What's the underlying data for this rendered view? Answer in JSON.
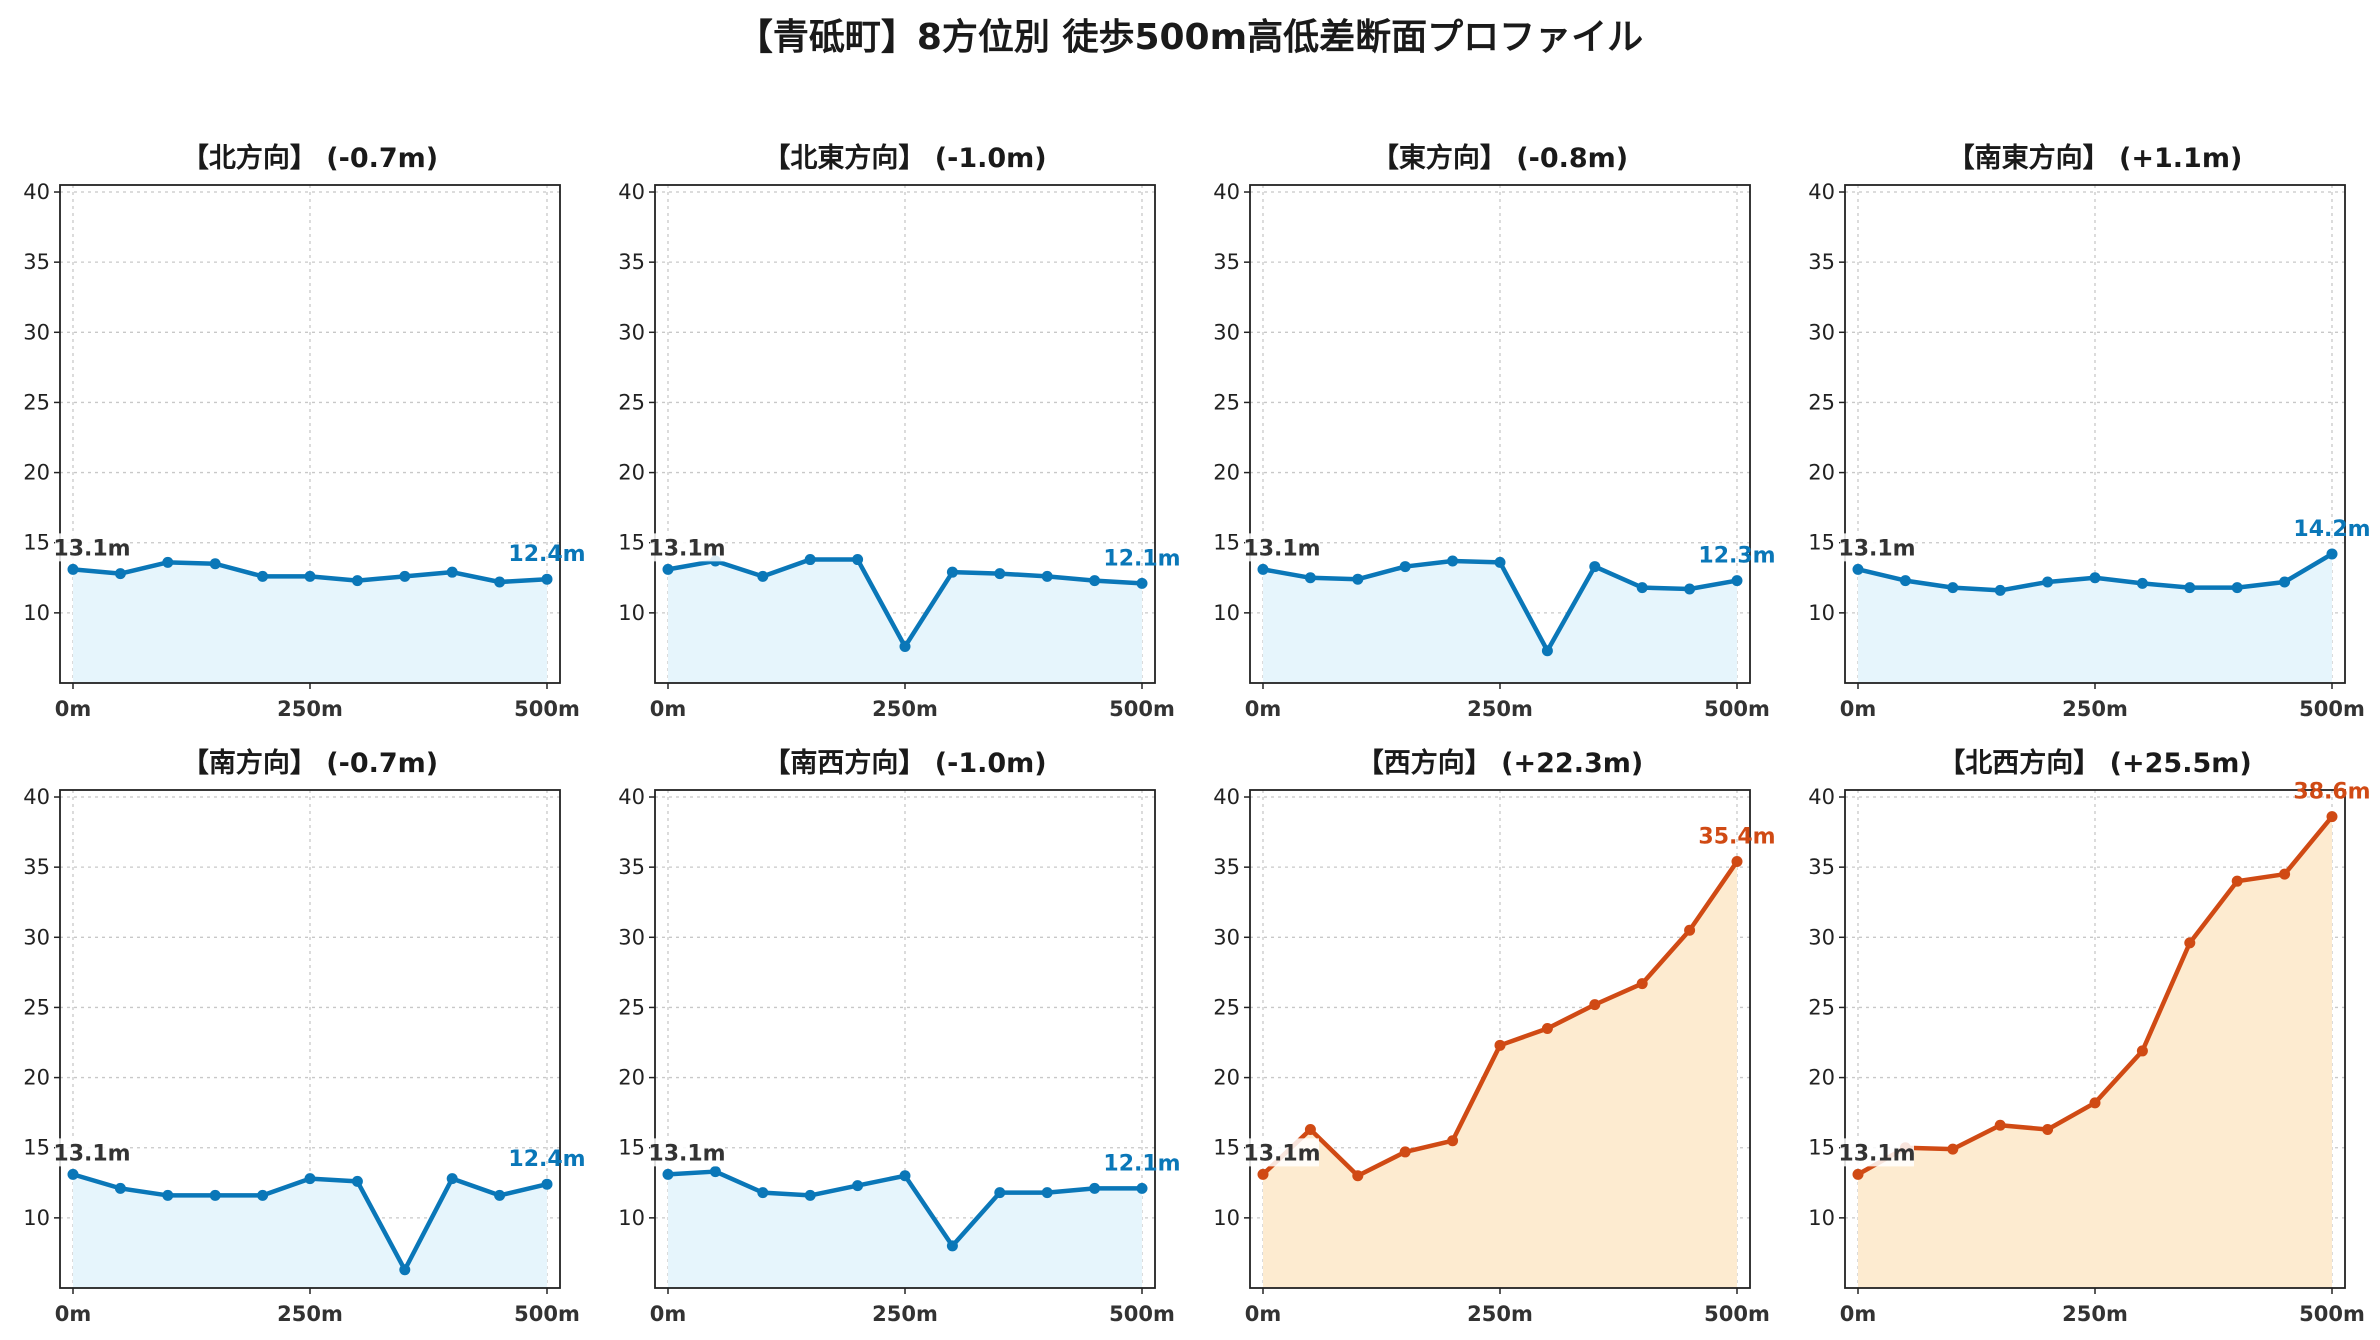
{
  "title": "【青砥町】8方位別 徒歩500m高低差断面プロファイル",
  "colors": {
    "flat_line": "#0a77b8",
    "flat_fill": "#e6f5fc",
    "up_line": "#d04a14",
    "up_fill": "#fdebd0",
    "start_label": "#333333"
  },
  "chart_data": [
    {
      "type": "area",
      "title": "【北方向】 (-0.7m)",
      "trend": "flat",
      "x": [
        0,
        50,
        100,
        150,
        200,
        250,
        300,
        350,
        400,
        450,
        500
      ],
      "values": [
        13.1,
        12.8,
        13.6,
        13.5,
        12.6,
        12.6,
        12.3,
        12.6,
        12.9,
        12.2,
        12.4
      ],
      "start_label": "13.1m",
      "end_label": "12.4m",
      "xticks": [
        "0m",
        "250m",
        "500m"
      ],
      "yticks": [
        10,
        15,
        20,
        25,
        30,
        35,
        40
      ],
      "ylim": [
        5,
        40.5
      ],
      "xlim": [
        0,
        500
      ],
      "grid": true
    },
    {
      "type": "area",
      "title": "【北東方向】 (-1.0m)",
      "trend": "flat",
      "x": [
        0,
        50,
        100,
        150,
        200,
        250,
        300,
        350,
        400,
        450,
        500
      ],
      "values": [
        13.1,
        13.7,
        12.6,
        13.8,
        13.8,
        7.6,
        12.9,
        12.8,
        12.6,
        12.3,
        12.1
      ],
      "start_label": "13.1m",
      "end_label": "12.1m",
      "xticks": [
        "0m",
        "250m",
        "500m"
      ],
      "yticks": [
        10,
        15,
        20,
        25,
        30,
        35,
        40
      ],
      "ylim": [
        5,
        40.5
      ],
      "xlim": [
        0,
        500
      ],
      "grid": true
    },
    {
      "type": "area",
      "title": "【東方向】 (-0.8m)",
      "trend": "flat",
      "x": [
        0,
        50,
        100,
        150,
        200,
        250,
        300,
        350,
        400,
        450,
        500
      ],
      "values": [
        13.1,
        12.5,
        12.4,
        13.3,
        13.7,
        13.6,
        7.3,
        13.3,
        11.8,
        11.7,
        12.3
      ],
      "start_label": "13.1m",
      "end_label": "12.3m",
      "xticks": [
        "0m",
        "250m",
        "500m"
      ],
      "yticks": [
        10,
        15,
        20,
        25,
        30,
        35,
        40
      ],
      "ylim": [
        5,
        40.5
      ],
      "xlim": [
        0,
        500
      ],
      "grid": true
    },
    {
      "type": "area",
      "title": "【南東方向】 (+1.1m)",
      "trend": "flat",
      "x": [
        0,
        50,
        100,
        150,
        200,
        250,
        300,
        350,
        400,
        450,
        500
      ],
      "values": [
        13.1,
        12.3,
        11.8,
        11.6,
        12.2,
        12.5,
        12.1,
        11.8,
        11.8,
        12.2,
        14.2
      ],
      "start_label": "13.1m",
      "end_label": "14.2m",
      "xticks": [
        "0m",
        "250m",
        "500m"
      ],
      "yticks": [
        10,
        15,
        20,
        25,
        30,
        35,
        40
      ],
      "ylim": [
        5,
        40.5
      ],
      "xlim": [
        0,
        500
      ],
      "grid": true
    },
    {
      "type": "area",
      "title": "【南方向】 (-0.7m)",
      "trend": "flat",
      "x": [
        0,
        50,
        100,
        150,
        200,
        250,
        300,
        350,
        400,
        450,
        500
      ],
      "values": [
        13.1,
        12.1,
        11.6,
        11.6,
        11.6,
        12.8,
        12.6,
        6.3,
        12.8,
        11.6,
        12.4
      ],
      "start_label": "13.1m",
      "end_label": "12.4m",
      "xticks": [
        "0m",
        "250m",
        "500m"
      ],
      "yticks": [
        10,
        15,
        20,
        25,
        30,
        35,
        40
      ],
      "ylim": [
        5,
        40.5
      ],
      "xlim": [
        0,
        500
      ],
      "grid": true
    },
    {
      "type": "area",
      "title": "【南西方向】 (-1.0m)",
      "trend": "flat",
      "x": [
        0,
        50,
        100,
        150,
        200,
        250,
        300,
        350,
        400,
        450,
        500
      ],
      "values": [
        13.1,
        13.3,
        11.8,
        11.6,
        12.3,
        13.0,
        8.0,
        11.8,
        11.8,
        12.1,
        12.1
      ],
      "start_label": "13.1m",
      "end_label": "12.1m",
      "xticks": [
        "0m",
        "250m",
        "500m"
      ],
      "yticks": [
        10,
        15,
        20,
        25,
        30,
        35,
        40
      ],
      "ylim": [
        5,
        40.5
      ],
      "xlim": [
        0,
        500
      ],
      "grid": true
    },
    {
      "type": "area",
      "title": "【西方向】 (+22.3m)",
      "trend": "up",
      "x": [
        0,
        50,
        100,
        150,
        200,
        250,
        300,
        350,
        400,
        450,
        500
      ],
      "values": [
        13.1,
        16.3,
        13.0,
        14.7,
        15.5,
        22.3,
        23.5,
        25.2,
        26.7,
        30.5,
        35.4
      ],
      "start_label": "13.1m",
      "end_label": "35.4m",
      "xticks": [
        "0m",
        "250m",
        "500m"
      ],
      "yticks": [
        10,
        15,
        20,
        25,
        30,
        35,
        40
      ],
      "ylim": [
        5,
        40.5
      ],
      "xlim": [
        0,
        500
      ],
      "grid": true
    },
    {
      "type": "area",
      "title": "【北西方向】 (+25.5m)",
      "trend": "up",
      "x": [
        0,
        50,
        100,
        150,
        200,
        250,
        300,
        350,
        400,
        450,
        500
      ],
      "values": [
        13.1,
        15.0,
        14.9,
        16.6,
        16.3,
        18.2,
        21.9,
        29.6,
        34.0,
        34.5,
        38.6
      ],
      "start_label": "13.1m",
      "end_label": "38.6m",
      "xticks": [
        "0m",
        "250m",
        "500m"
      ],
      "yticks": [
        10,
        15,
        20,
        25,
        30,
        35,
        40
      ],
      "ylim": [
        5,
        40.5
      ],
      "xlim": [
        0,
        500
      ],
      "grid": true
    }
  ]
}
